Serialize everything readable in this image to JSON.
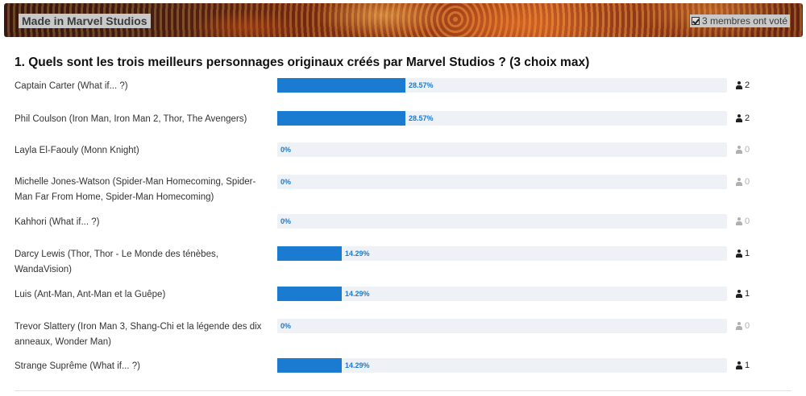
{
  "banner": {
    "title": "Made in Marvel Studios",
    "votes_text": "3 membres ont voté"
  },
  "poll": {
    "question": "1. Quels sont les trois meilleurs personnages originaux créés par Marvel Studios ? (3 choix max)",
    "options": [
      {
        "label": "Captain Carter (What if... ?)",
        "percent_text": "28.57%",
        "fraction": 0.2857,
        "count": "2"
      },
      {
        "label": "Phil Coulson (Iron Man, Iron Man 2, Thor, The Avengers)",
        "percent_text": "28.57%",
        "fraction": 0.2857,
        "count": "2"
      },
      {
        "label": "Layla El-Faouly (Monn Knight)",
        "percent_text": "0%",
        "fraction": 0,
        "count": "0"
      },
      {
        "label": "Michelle Jones-Watson (Spider-Man Homecoming, Spider-Man Far From Home, Spider-Man Homecoming)",
        "percent_text": "0%",
        "fraction": 0,
        "count": "0"
      },
      {
        "label": "Kahhori (What if... ?)",
        "percent_text": "0%",
        "fraction": 0,
        "count": "0"
      },
      {
        "label": "Darcy Lewis (Thor, Thor - Le Monde des ténèbes, WandaVision)",
        "percent_text": "14.29%",
        "fraction": 0.1429,
        "count": "1"
      },
      {
        "label": "Luis (Ant-Man, Ant-Man et la Guêpe)",
        "percent_text": "14.29%",
        "fraction": 0.1429,
        "count": "1"
      },
      {
        "label": "Trevor Slattery (Iron Man 3, Shang-Chi et la légende des dix anneaux, Wonder Man)",
        "percent_text": "0%",
        "fraction": 0,
        "count": "0"
      },
      {
        "label": "Strange Suprême (What if... ?)",
        "percent_text": "14.29%",
        "fraction": 0.1429,
        "count": "1"
      }
    ]
  },
  "colors": {
    "bar_fill": "#1a7bd0",
    "bar_track": "#eef1f5",
    "zero_count": "#b0b0b0"
  },
  "icons": {
    "votes": "check-square-icon",
    "voter": "user-icon"
  }
}
